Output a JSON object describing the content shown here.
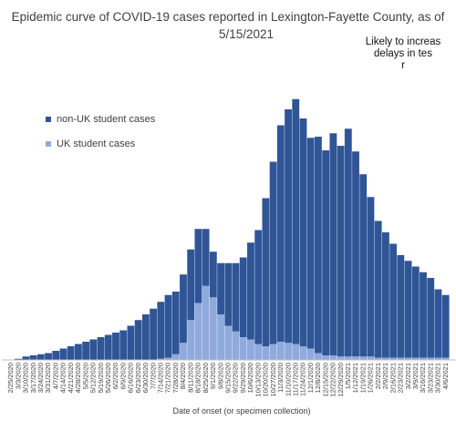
{
  "title_line1": "Epidemic curve of COVID-19 cases reported in Lexington-Fayette County, as of",
  "title_line2": "5/15/2021",
  "annotation": [
    "Likely to increas",
    "delays in tes",
    "r"
  ],
  "chart_data": {
    "type": "bar",
    "stacked": true,
    "title": "Epidemic curve of COVID-19 cases reported in Lexington-Fayette County, as of 5/15/2021",
    "xlabel": "Date of onset (or specimen collection)",
    "ylabel": "",
    "grid": false,
    "legend_position": "left",
    "colors": {
      "non_uk": "#2f5597",
      "uk": "#8faadc"
    },
    "legend": [
      {
        "name": "non-UK student cases",
        "color": "#2f5597"
      },
      {
        "name": "UK student cases",
        "color": "#8faadc"
      }
    ],
    "x_tick_labels": [
      "2/25/2020",
      "3/3/2020",
      "3/10/2020",
      "3/17/2020",
      "3/24/2020",
      "3/31/2020",
      "4/7/2020",
      "4/14/2020",
      "4/21/2020",
      "4/28/2020",
      "5/5/2020",
      "5/12/2020",
      "5/19/2020",
      "5/26/2020",
      "6/2/2020",
      "6/9/2020",
      "6/16/2020",
      "6/23/2020",
      "6/30/2020",
      "7/7/2020",
      "7/14/2020",
      "7/21/2020",
      "7/28/2020",
      "8/4/2020",
      "8/11/2020",
      "8/18/2020",
      "8/25/2020",
      "9/1/2020",
      "9/8/2020",
      "9/15/2020",
      "9/22/2020",
      "9/29/2020",
      "10/6/2020",
      "10/13/2020",
      "10/20/2020",
      "10/27/2020",
      "11/3/2020",
      "11/10/2020",
      "11/17/2020",
      "11/24/2020",
      "12/1/2020",
      "12/8/2020",
      "12/15/2020",
      "12/22/2020",
      "12/29/2020",
      "1/5/2021",
      "1/12/2021",
      "1/19/2021",
      "1/26/2021",
      "2/2/2021",
      "2/9/2021",
      "2/16/2021",
      "2/23/2021",
      "3/2/2021",
      "3/9/2021",
      "3/16/2021",
      "3/23/2021",
      "3/30/2021",
      "4/6/2021"
    ],
    "series": [
      {
        "name": "non-UK student cases",
        "weekly_values": [
          0,
          1,
          3,
          4,
          5,
          6,
          8,
          10,
          12,
          14,
          16,
          18,
          20,
          22,
          24,
          26,
          30,
          35,
          40,
          45,
          50,
          55,
          55,
          60,
          62,
          65,
          50,
          40,
          45,
          55,
          60,
          70,
          85,
          100,
          130,
          160,
          190,
          205,
          215,
          200,
          185,
          190,
          180,
          195,
          185,
          200,
          180,
          160,
          140,
          120,
          110,
          100,
          90,
          85,
          80,
          75,
          70,
          60,
          55
        ]
      },
      {
        "name": "UK student cases",
        "weekly_values": [
          0,
          0,
          0,
          0,
          0,
          0,
          0,
          0,
          0,
          0,
          0,
          0,
          0,
          0,
          0,
          0,
          0,
          0,
          0,
          0,
          1,
          2,
          5,
          15,
          35,
          50,
          65,
          55,
          40,
          30,
          25,
          20,
          18,
          14,
          12,
          14,
          16,
          15,
          14,
          12,
          10,
          6,
          4,
          4,
          3,
          3,
          3,
          3,
          3,
          2,
          2,
          2,
          2,
          2,
          2,
          2,
          2,
          2,
          2
        ]
      }
    ]
  }
}
